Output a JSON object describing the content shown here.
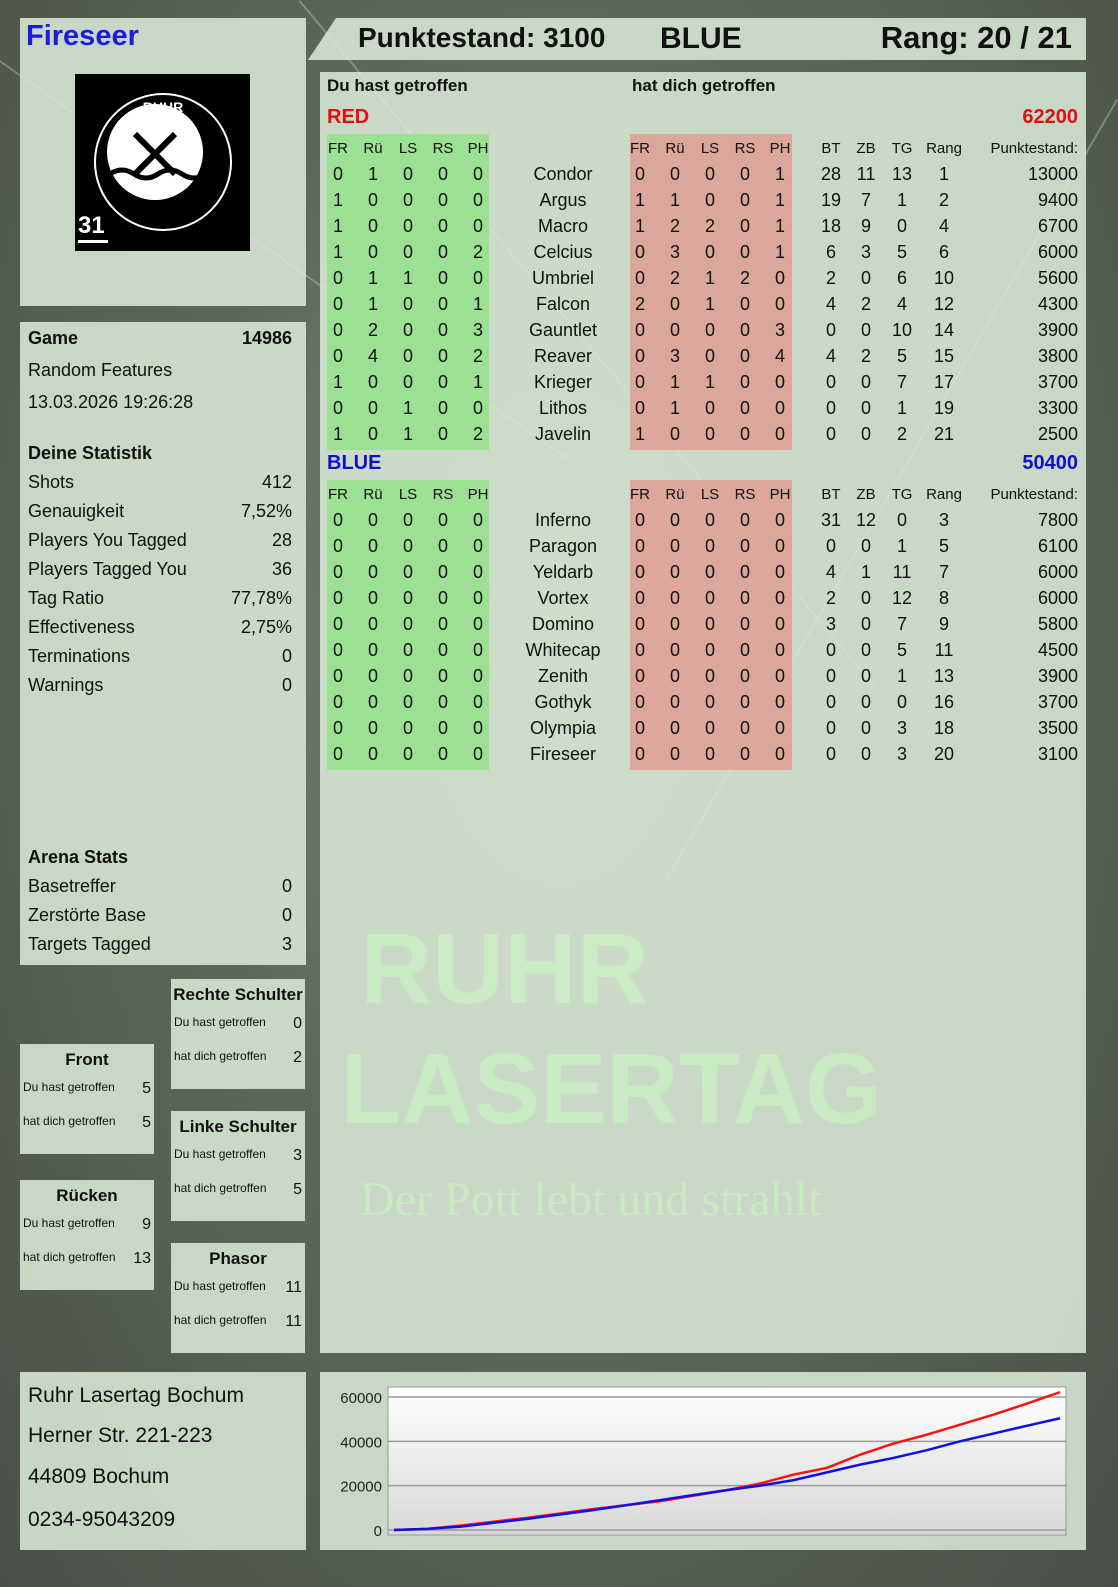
{
  "player": {
    "name": "Fireseer",
    "logo_text": "RUHR LASERTAG",
    "logo_number": "31"
  },
  "header": {
    "score": "Punktestand: 3100",
    "team": "BLUE",
    "rank": "Rang: 20 / 21"
  },
  "table": {
    "label_you_hit": "Du hast getroffen",
    "label_hit_you": "hat dich getroffen",
    "columns_hits": [
      "FR",
      "Rü",
      "LS",
      "RS",
      "PH"
    ],
    "columns_stats": [
      "BT",
      "ZB",
      "TG",
      "Rang",
      "Punktestand:"
    ],
    "teams": [
      {
        "name": "RED",
        "score": "62200",
        "color": "#e01010",
        "players": [
          {
            "name": "Condor",
            "you_hit": [
              0,
              1,
              0,
              0,
              0
            ],
            "hit_you": [
              0,
              0,
              0,
              0,
              1
            ],
            "bt": 28,
            "zb": 11,
            "tg": 13,
            "rang": 1,
            "score": 13000
          },
          {
            "name": "Argus",
            "you_hit": [
              1,
              0,
              0,
              0,
              0
            ],
            "hit_you": [
              1,
              1,
              0,
              0,
              1
            ],
            "bt": 19,
            "zb": 7,
            "tg": 1,
            "rang": 2,
            "score": 9400
          },
          {
            "name": "Macro",
            "you_hit": [
              1,
              0,
              0,
              0,
              0
            ],
            "hit_you": [
              1,
              2,
              2,
              0,
              1
            ],
            "bt": 18,
            "zb": 9,
            "tg": 0,
            "rang": 4,
            "score": 6700
          },
          {
            "name": "Celcius",
            "you_hit": [
              1,
              0,
              0,
              0,
              2
            ],
            "hit_you": [
              0,
              3,
              0,
              0,
              1
            ],
            "bt": 6,
            "zb": 3,
            "tg": 5,
            "rang": 6,
            "score": 6000
          },
          {
            "name": "Umbriel",
            "you_hit": [
              0,
              1,
              1,
              0,
              0
            ],
            "hit_you": [
              0,
              2,
              1,
              2,
              0
            ],
            "bt": 2,
            "zb": 0,
            "tg": 6,
            "rang": 10,
            "score": 5600
          },
          {
            "name": "Falcon",
            "you_hit": [
              0,
              1,
              0,
              0,
              1
            ],
            "hit_you": [
              2,
              0,
              1,
              0,
              0
            ],
            "bt": 4,
            "zb": 2,
            "tg": 4,
            "rang": 12,
            "score": 4300
          },
          {
            "name": "Gauntlet",
            "you_hit": [
              0,
              2,
              0,
              0,
              3
            ],
            "hit_you": [
              0,
              0,
              0,
              0,
              3
            ],
            "bt": 0,
            "zb": 0,
            "tg": 10,
            "rang": 14,
            "score": 3900
          },
          {
            "name": "Reaver",
            "you_hit": [
              0,
              4,
              0,
              0,
              2
            ],
            "hit_you": [
              0,
              3,
              0,
              0,
              4
            ],
            "bt": 4,
            "zb": 2,
            "tg": 5,
            "rang": 15,
            "score": 3800
          },
          {
            "name": "Krieger",
            "you_hit": [
              1,
              0,
              0,
              0,
              1
            ],
            "hit_you": [
              0,
              1,
              1,
              0,
              0
            ],
            "bt": 0,
            "zb": 0,
            "tg": 7,
            "rang": 17,
            "score": 3700
          },
          {
            "name": "Lithos",
            "you_hit": [
              0,
              0,
              1,
              0,
              0
            ],
            "hit_you": [
              0,
              1,
              0,
              0,
              0
            ],
            "bt": 0,
            "zb": 0,
            "tg": 1,
            "rang": 19,
            "score": 3300
          },
          {
            "name": "Javelin",
            "you_hit": [
              1,
              0,
              1,
              0,
              2
            ],
            "hit_you": [
              1,
              0,
              0,
              0,
              0
            ],
            "bt": 0,
            "zb": 0,
            "tg": 2,
            "rang": 21,
            "score": 2500
          }
        ]
      },
      {
        "name": "BLUE",
        "score": "50400",
        "color": "#1010d0",
        "players": [
          {
            "name": "Inferno",
            "you_hit": [
              0,
              0,
              0,
              0,
              0
            ],
            "hit_you": [
              0,
              0,
              0,
              0,
              0
            ],
            "bt": 31,
            "zb": 12,
            "tg": 0,
            "rang": 3,
            "score": 7800
          },
          {
            "name": "Paragon",
            "you_hit": [
              0,
              0,
              0,
              0,
              0
            ],
            "hit_you": [
              0,
              0,
              0,
              0,
              0
            ],
            "bt": 0,
            "zb": 0,
            "tg": 1,
            "rang": 5,
            "score": 6100
          },
          {
            "name": "Yeldarb",
            "you_hit": [
              0,
              0,
              0,
              0,
              0
            ],
            "hit_you": [
              0,
              0,
              0,
              0,
              0
            ],
            "bt": 4,
            "zb": 1,
            "tg": 11,
            "rang": 7,
            "score": 6000
          },
          {
            "name": "Vortex",
            "you_hit": [
              0,
              0,
              0,
              0,
              0
            ],
            "hit_you": [
              0,
              0,
              0,
              0,
              0
            ],
            "bt": 2,
            "zb": 0,
            "tg": 12,
            "rang": 8,
            "score": 6000
          },
          {
            "name": "Domino",
            "you_hit": [
              0,
              0,
              0,
              0,
              0
            ],
            "hit_you": [
              0,
              0,
              0,
              0,
              0
            ],
            "bt": 3,
            "zb": 0,
            "tg": 7,
            "rang": 9,
            "score": 5800
          },
          {
            "name": "Whitecap",
            "you_hit": [
              0,
              0,
              0,
              0,
              0
            ],
            "hit_you": [
              0,
              0,
              0,
              0,
              0
            ],
            "bt": 0,
            "zb": 0,
            "tg": 5,
            "rang": 11,
            "score": 4500
          },
          {
            "name": "Zenith",
            "you_hit": [
              0,
              0,
              0,
              0,
              0
            ],
            "hit_you": [
              0,
              0,
              0,
              0,
              0
            ],
            "bt": 0,
            "zb": 0,
            "tg": 1,
            "rang": 13,
            "score": 3900
          },
          {
            "name": "Gothyk",
            "you_hit": [
              0,
              0,
              0,
              0,
              0
            ],
            "hit_you": [
              0,
              0,
              0,
              0,
              0
            ],
            "bt": 0,
            "zb": 0,
            "tg": 0,
            "rang": 16,
            "score": 3700
          },
          {
            "name": "Olympia",
            "you_hit": [
              0,
              0,
              0,
              0,
              0
            ],
            "hit_you": [
              0,
              0,
              0,
              0,
              0
            ],
            "bt": 0,
            "zb": 0,
            "tg": 3,
            "rang": 18,
            "score": 3500
          },
          {
            "name": "Fireseer",
            "you_hit": [
              0,
              0,
              0,
              0,
              0
            ],
            "hit_you": [
              0,
              0,
              0,
              0,
              0
            ],
            "bt": 0,
            "zb": 0,
            "tg": 3,
            "rang": 20,
            "score": 3100
          }
        ]
      }
    ]
  },
  "game": {
    "label": "Game",
    "id": "14986",
    "mode": "Random Features",
    "datetime": "13.03.2026 19:26:28"
  },
  "stats": {
    "title": "Deine Statistik",
    "rows": [
      {
        "label": "Shots",
        "value": "412"
      },
      {
        "label": "Genauigkeit",
        "value": "7,52%"
      },
      {
        "label": "Players You Tagged",
        "value": "28"
      },
      {
        "label": "Players Tagged You",
        "value": "36"
      },
      {
        "label": "Tag Ratio",
        "value": "77,78%"
      },
      {
        "label": "Effectiveness",
        "value": "2,75%"
      },
      {
        "label": "Terminations",
        "value": "0"
      },
      {
        "label": "Warnings",
        "value": "0"
      }
    ]
  },
  "arena": {
    "title": "Arena Stats",
    "rows": [
      {
        "label": "Basetreffer",
        "value": "0"
      },
      {
        "label": "Zerstörte Base",
        "value": "0"
      },
      {
        "label": "Targets Tagged",
        "value": "3"
      }
    ]
  },
  "hits": {
    "you_label": "Du hast getroffen",
    "them_label": "hat dich getroffen",
    "zones": [
      {
        "name": "Rechte Schulter",
        "you": "0",
        "them": "2"
      },
      {
        "name": "Front",
        "you": "5",
        "them": "5"
      },
      {
        "name": "Linke Schulter",
        "you": "3",
        "them": "5"
      },
      {
        "name": "Rücken",
        "you": "9",
        "them": "13"
      },
      {
        "name": "Phasor",
        "you": "11",
        "them": "11"
      }
    ]
  },
  "address": {
    "lines": [
      "Ruhr Lasertag Bochum",
      "Herner Str. 221-223",
      "44809 Bochum",
      "0234-95043209"
    ]
  },
  "watermark": {
    "line1": "RUHR",
    "line2": "LASERTAG",
    "tagline": "Der Pott lebt und strahlt"
  },
  "chart_data": {
    "type": "line",
    "ylim": [
      0,
      65000
    ],
    "yticks": [
      "60000",
      "40000",
      "20000",
      "0"
    ],
    "grid": true,
    "x": [
      0,
      5,
      10,
      20,
      30,
      40,
      45,
      50,
      55,
      60,
      65,
      70,
      75,
      80,
      85,
      90,
      95,
      100
    ],
    "series": [
      {
        "color": "#ff1010",
        "values": [
          0,
          500,
          2000,
          5500,
          9500,
          13000,
          15500,
          18000,
          21000,
          25000,
          28000,
          34000,
          39000,
          43000,
          47500,
          52000,
          57000,
          62200
        ]
      },
      {
        "color": "#1010e0",
        "values": [
          0,
          500,
          1500,
          5000,
          9000,
          13500,
          15800,
          18000,
          20000,
          22500,
          26000,
          29500,
          32500,
          36000,
          40000,
          43500,
          47000,
          50400
        ]
      }
    ]
  }
}
